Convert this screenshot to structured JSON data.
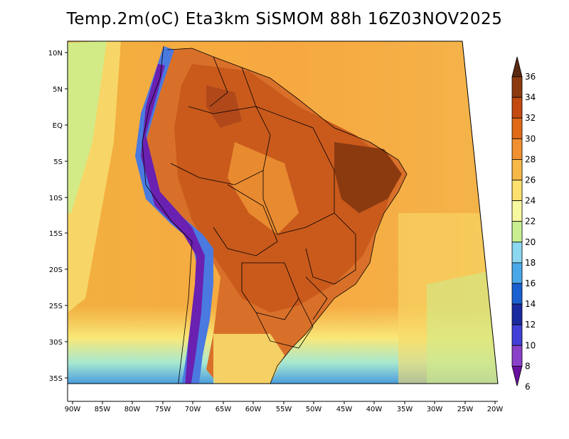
{
  "title": "Temp.2m(oC) Eta3km SiSMOM 88h 16Z03NOV2025",
  "map": {
    "lat_labels": [
      "10N",
      "5N",
      "EQ",
      "5S",
      "10S",
      "15S",
      "20S",
      "25S",
      "30S",
      "35S"
    ],
    "lon_labels": [
      "90W",
      "85W",
      "80W",
      "75W",
      "70W",
      "65W",
      "60W",
      "55W",
      "50W",
      "45W",
      "40W",
      "35W",
      "30W",
      "25W",
      "20W"
    ]
  },
  "colorbar": {
    "labels": [
      "36",
      "34",
      "32",
      "30",
      "28",
      "26",
      "24",
      "22",
      "20",
      "18",
      "16",
      "14",
      "12",
      "10",
      "8",
      "6"
    ],
    "colors": [
      "#5a2a10",
      "#8b3a10",
      "#c24a10",
      "#e06a18",
      "#f09030",
      "#f8b848",
      "#fde070",
      "#f8f8a0",
      "#c8f090",
      "#8cd8f0",
      "#4aa8e8",
      "#1a60d0",
      "#1a2aa0",
      "#4040d8",
      "#8a40c8",
      "#6a10a0"
    ]
  }
}
